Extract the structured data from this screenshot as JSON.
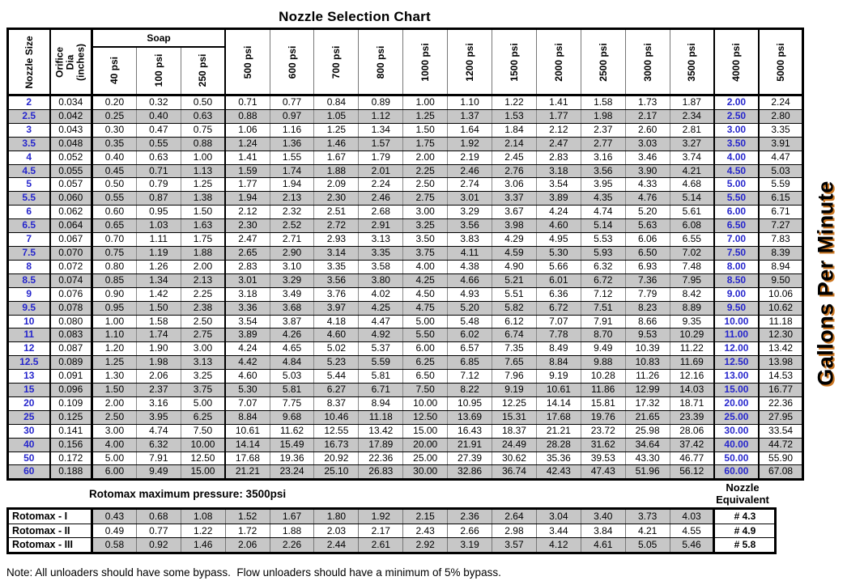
{
  "title": "Nozzle Selection Chart",
  "gpm_label": "Gallons Per Minute",
  "note": "Note: All unloaders should have some bypass.  Flow unloaders should have a minimum of 5% bypass.",
  "colors": {
    "accent_blue": "#2626cc",
    "row_gray": "#c7c7c7",
    "shadow_orange": "#cc7722"
  },
  "main_table": {
    "corner_headers": [
      "Nozzle Size",
      "Orifice Dia\n(inches)"
    ],
    "soap_label": "Soap",
    "pressure_headers": [
      "40 psi",
      "100 psi",
      "250 psi",
      "500 psi",
      "600 psi",
      "700 psi",
      "800 psi",
      "1000 psi",
      "1200 psi",
      "1500 psi",
      "2000 psi",
      "2500 psi",
      "3000 psi",
      "3500 psi",
      "4000 psi",
      "5000 psi"
    ],
    "rows": [
      {
        "size": "2",
        "orifice": "0.034",
        "values": [
          "0.20",
          "0.32",
          "0.50",
          "0.71",
          "0.77",
          "0.84",
          "0.89",
          "1.00",
          "1.10",
          "1.22",
          "1.41",
          "1.58",
          "1.73",
          "1.87",
          "2.00",
          "2.24"
        ]
      },
      {
        "size": "2.5",
        "orifice": "0.042",
        "values": [
          "0.25",
          "0.40",
          "0.63",
          "0.88",
          "0.97",
          "1.05",
          "1.12",
          "1.25",
          "1.37",
          "1.53",
          "1.77",
          "1.98",
          "2.17",
          "2.34",
          "2.50",
          "2.80"
        ]
      },
      {
        "size": "3",
        "orifice": "0.043",
        "values": [
          "0.30",
          "0.47",
          "0.75",
          "1.06",
          "1.16",
          "1.25",
          "1.34",
          "1.50",
          "1.64",
          "1.84",
          "2.12",
          "2.37",
          "2.60",
          "2.81",
          "3.00",
          "3.35"
        ]
      },
      {
        "size": "3.5",
        "orifice": "0.048",
        "values": [
          "0.35",
          "0.55",
          "0.88",
          "1.24",
          "1.36",
          "1.46",
          "1.57",
          "1.75",
          "1.92",
          "2.14",
          "2.47",
          "2.77",
          "3.03",
          "3.27",
          "3.50",
          "3.91"
        ]
      },
      {
        "size": "4",
        "orifice": "0.052",
        "values": [
          "0.40",
          "0.63",
          "1.00",
          "1.41",
          "1.55",
          "1.67",
          "1.79",
          "2.00",
          "2.19",
          "2.45",
          "2.83",
          "3.16",
          "3.46",
          "3.74",
          "4.00",
          "4.47"
        ]
      },
      {
        "size": "4.5",
        "orifice": "0.055",
        "values": [
          "0.45",
          "0.71",
          "1.13",
          "1.59",
          "1.74",
          "1.88",
          "2.01",
          "2.25",
          "2.46",
          "2.76",
          "3.18",
          "3.56",
          "3.90",
          "4.21",
          "4.50",
          "5.03"
        ]
      },
      {
        "size": "5",
        "orifice": "0.057",
        "values": [
          "0.50",
          "0.79",
          "1.25",
          "1.77",
          "1.94",
          "2.09",
          "2.24",
          "2.50",
          "2.74",
          "3.06",
          "3.54",
          "3.95",
          "4.33",
          "4.68",
          "5.00",
          "5.59"
        ]
      },
      {
        "size": "5.5",
        "orifice": "0.060",
        "values": [
          "0.55",
          "0.87",
          "1.38",
          "1.94",
          "2.13",
          "2.30",
          "2.46",
          "2.75",
          "3.01",
          "3.37",
          "3.89",
          "4.35",
          "4.76",
          "5.14",
          "5.50",
          "6.15"
        ]
      },
      {
        "size": "6",
        "orifice": "0.062",
        "values": [
          "0.60",
          "0.95",
          "1.50",
          "2.12",
          "2.32",
          "2.51",
          "2.68",
          "3.00",
          "3.29",
          "3.67",
          "4.24",
          "4.74",
          "5.20",
          "5.61",
          "6.00",
          "6.71"
        ]
      },
      {
        "size": "6.5",
        "orifice": "0.064",
        "values": [
          "0.65",
          "1.03",
          "1.63",
          "2.30",
          "2.52",
          "2.72",
          "2.91",
          "3.25",
          "3.56",
          "3.98",
          "4.60",
          "5.14",
          "5.63",
          "6.08",
          "6.50",
          "7.27"
        ]
      },
      {
        "size": "7",
        "orifice": "0.067",
        "values": [
          "0.70",
          "1.11",
          "1.75",
          "2.47",
          "2.71",
          "2.93",
          "3.13",
          "3.50",
          "3.83",
          "4.29",
          "4.95",
          "5.53",
          "6.06",
          "6.55",
          "7.00",
          "7.83"
        ]
      },
      {
        "size": "7.5",
        "orifice": "0.070",
        "values": [
          "0.75",
          "1.19",
          "1.88",
          "2.65",
          "2.90",
          "3.14",
          "3.35",
          "3.75",
          "4.11",
          "4.59",
          "5.30",
          "5.93",
          "6.50",
          "7.02",
          "7.50",
          "8.39"
        ]
      },
      {
        "size": "8",
        "orifice": "0.072",
        "values": [
          "0.80",
          "1.26",
          "2.00",
          "2.83",
          "3.10",
          "3.35",
          "3.58",
          "4.00",
          "4.38",
          "4.90",
          "5.66",
          "6.32",
          "6.93",
          "7.48",
          "8.00",
          "8.94"
        ]
      },
      {
        "size": "8.5",
        "orifice": "0.074",
        "values": [
          "0.85",
          "1.34",
          "2.13",
          "3.01",
          "3.29",
          "3.56",
          "3.80",
          "4.25",
          "4.66",
          "5.21",
          "6.01",
          "6.72",
          "7.36",
          "7.95",
          "8.50",
          "9.50"
        ]
      },
      {
        "size": "9",
        "orifice": "0.076",
        "values": [
          "0.90",
          "1.42",
          "2.25",
          "3.18",
          "3.49",
          "3.76",
          "4.02",
          "4.50",
          "4.93",
          "5.51",
          "6.36",
          "7.12",
          "7.79",
          "8.42",
          "9.00",
          "10.06"
        ]
      },
      {
        "size": "9.5",
        "orifice": "0.078",
        "values": [
          "0.95",
          "1.50",
          "2.38",
          "3.36",
          "3.68",
          "3.97",
          "4.25",
          "4.75",
          "5.20",
          "5.82",
          "6.72",
          "7.51",
          "8.23",
          "8.89",
          "9.50",
          "10.62"
        ]
      },
      {
        "size": "10",
        "orifice": "0.080",
        "values": [
          "1.00",
          "1.58",
          "2.50",
          "3.54",
          "3.87",
          "4.18",
          "4.47",
          "5.00",
          "5.48",
          "6.12",
          "7.07",
          "7.91",
          "8.66",
          "9.35",
          "10.00",
          "11.18"
        ]
      },
      {
        "size": "11",
        "orifice": "0.083",
        "values": [
          "1.10",
          "1.74",
          "2.75",
          "3.89",
          "4.26",
          "4.60",
          "4.92",
          "5.50",
          "6.02",
          "6.74",
          "7.78",
          "8.70",
          "9.53",
          "10.29",
          "11.00",
          "12.30"
        ]
      },
      {
        "size": "12",
        "orifice": "0.087",
        "values": [
          "1.20",
          "1.90",
          "3.00",
          "4.24",
          "4.65",
          "5.02",
          "5.37",
          "6.00",
          "6.57",
          "7.35",
          "8.49",
          "9.49",
          "10.39",
          "11.22",
          "12.00",
          "13.42"
        ]
      },
      {
        "size": "12.5",
        "orifice": "0.089",
        "values": [
          "1.25",
          "1.98",
          "3.13",
          "4.42",
          "4.84",
          "5.23",
          "5.59",
          "6.25",
          "6.85",
          "7.65",
          "8.84",
          "9.88",
          "10.83",
          "11.69",
          "12.50",
          "13.98"
        ]
      },
      {
        "size": "13",
        "orifice": "0.091",
        "values": [
          "1.30",
          "2.06",
          "3.25",
          "4.60",
          "5.03",
          "5.44",
          "5.81",
          "6.50",
          "7.12",
          "7.96",
          "9.19",
          "10.28",
          "11.26",
          "12.16",
          "13.00",
          "14.53"
        ]
      },
      {
        "size": "15",
        "orifice": "0.096",
        "values": [
          "1.50",
          "2.37",
          "3.75",
          "5.30",
          "5.81",
          "6.27",
          "6.71",
          "7.50",
          "8.22",
          "9.19",
          "10.61",
          "11.86",
          "12.99",
          "14.03",
          "15.00",
          "16.77"
        ]
      },
      {
        "size": "20",
        "orifice": "0.109",
        "values": [
          "2.00",
          "3.16",
          "5.00",
          "7.07",
          "7.75",
          "8.37",
          "8.94",
          "10.00",
          "10.95",
          "12.25",
          "14.14",
          "15.81",
          "17.32",
          "18.71",
          "20.00",
          "22.36"
        ]
      },
      {
        "size": "25",
        "orifice": "0.125",
        "values": [
          "2.50",
          "3.95",
          "6.25",
          "8.84",
          "9.68",
          "10.46",
          "11.18",
          "12.50",
          "13.69",
          "15.31",
          "17.68",
          "19.76",
          "21.65",
          "23.39",
          "25.00",
          "27.95"
        ]
      },
      {
        "size": "30",
        "orifice": "0.141",
        "values": [
          "3.00",
          "4.74",
          "7.50",
          "10.61",
          "11.62",
          "12.55",
          "13.42",
          "15.00",
          "16.43",
          "18.37",
          "21.21",
          "23.72",
          "25.98",
          "28.06",
          "30.00",
          "33.54"
        ]
      },
      {
        "size": "40",
        "orifice": "0.156",
        "values": [
          "4.00",
          "6.32",
          "10.00",
          "14.14",
          "15.49",
          "16.73",
          "17.89",
          "20.00",
          "21.91",
          "24.49",
          "28.28",
          "31.62",
          "34.64",
          "37.42",
          "40.00",
          "44.72"
        ]
      },
      {
        "size": "50",
        "orifice": "0.172",
        "values": [
          "5.00",
          "7.91",
          "12.50",
          "17.68",
          "19.36",
          "20.92",
          "22.36",
          "25.00",
          "27.39",
          "30.62",
          "35.36",
          "39.53",
          "43.30",
          "46.77",
          "50.00",
          "55.90"
        ]
      },
      {
        "size": "60",
        "orifice": "0.188",
        "values": [
          "6.00",
          "9.49",
          "15.00",
          "21.21",
          "23.24",
          "25.10",
          "26.83",
          "30.00",
          "32.86",
          "36.74",
          "42.43",
          "47.43",
          "51.96",
          "56.12",
          "60.00",
          "67.08"
        ]
      }
    ]
  },
  "rotomax": {
    "max_pressure_label": "Rotomax maximum pressure: 3500psi",
    "equivalent_header": "Nozzle\nEquivalent",
    "rows": [
      {
        "label": "Rotomax - I",
        "values": [
          "0.43",
          "0.68",
          "1.08",
          "1.52",
          "1.67",
          "1.80",
          "1.92",
          "2.15",
          "2.36",
          "2.64",
          "3.04",
          "3.40",
          "3.73",
          "4.03"
        ],
        "equivalent": "# 4.3"
      },
      {
        "label": "Rotomax - II",
        "values": [
          "0.49",
          "0.77",
          "1.22",
          "1.72",
          "1.88",
          "2.03",
          "2.17",
          "2.43",
          "2.66",
          "2.98",
          "3.44",
          "3.84",
          "4.21",
          "4.55"
        ],
        "equivalent": "# 4.9"
      },
      {
        "label": "Rotomax - III",
        "values": [
          "0.58",
          "0.92",
          "1.46",
          "2.06",
          "2.26",
          "2.44",
          "2.61",
          "2.92",
          "3.19",
          "3.57",
          "4.12",
          "4.61",
          "5.05",
          "5.46"
        ],
        "equivalent": "# 5.8"
      }
    ]
  }
}
